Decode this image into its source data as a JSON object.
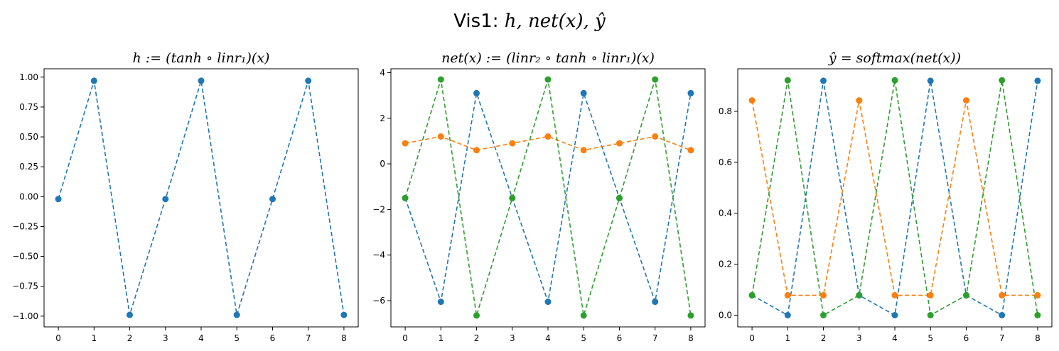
{
  "figure": {
    "suptitle_prefix": "Vis1: ",
    "suptitle_math": "h, net(x), ŷ"
  },
  "chart_data": [
    {
      "type": "line",
      "title_math": "h := (tanh ∘ linr₁)(x)",
      "x": [
        0,
        1,
        2,
        3,
        4,
        5,
        6,
        7,
        8
      ],
      "xticks": [
        0,
        1,
        2,
        3,
        4,
        5,
        6,
        7,
        8
      ],
      "xlim": [
        -0.4,
        8.4
      ],
      "yticks": [
        -1.0,
        -0.75,
        -0.5,
        -0.25,
        0.0,
        0.25,
        0.5,
        0.75,
        1.0
      ],
      "ytick_labels": [
        "−1.00",
        "−0.75",
        "−0.50",
        "−0.25",
        "0.00",
        "0.25",
        "0.50",
        "0.75",
        "1.00"
      ],
      "ylim": [
        -1.09,
        1.07
      ],
      "line_style": "dashed",
      "marker": "o",
      "series": [
        {
          "color": "#1f77b4",
          "values": [
            -0.02,
            0.97,
            -0.99,
            -0.02,
            0.97,
            -0.99,
            -0.02,
            0.97,
            -0.99
          ]
        }
      ]
    },
    {
      "type": "line",
      "title_math": "net(x) := (linr₂ ∘ tanh ∘ linr₁)(x)",
      "x": [
        0,
        1,
        2,
        3,
        4,
        5,
        6,
        7,
        8
      ],
      "xticks": [
        0,
        1,
        2,
        3,
        4,
        5,
        6,
        7,
        8
      ],
      "xlim": [
        -0.4,
        8.4
      ],
      "yticks": [
        -6,
        -4,
        -2,
        0,
        2,
        4
      ],
      "ytick_labels": [
        "−6",
        "−4",
        "−2",
        "0",
        "2",
        "4"
      ],
      "ylim": [
        -7.15,
        4.17
      ],
      "line_style": "dashed",
      "marker": "o",
      "series": [
        {
          "color": "#1f77b4",
          "values": [
            -1.5,
            -6.05,
            3.1,
            -1.5,
            -6.05,
            3.1,
            -1.5,
            -6.05,
            3.1
          ]
        },
        {
          "color": "#ff7f0e",
          "values": [
            0.9,
            1.2,
            0.6,
            0.9,
            1.2,
            0.6,
            0.9,
            1.2,
            0.6
          ]
        },
        {
          "color": "#2ca02c",
          "values": [
            -1.5,
            3.7,
            -6.65,
            -1.5,
            3.7,
            -6.65,
            -1.5,
            3.7,
            -6.65
          ]
        }
      ]
    },
    {
      "type": "line",
      "title_math": "ŷ = softmax(net(x))",
      "x": [
        0,
        1,
        2,
        3,
        4,
        5,
        6,
        7,
        8
      ],
      "xticks": [
        0,
        1,
        2,
        3,
        4,
        5,
        6,
        7,
        8
      ],
      "xlim": [
        -0.4,
        8.4
      ],
      "yticks": [
        0.0,
        0.2,
        0.4,
        0.6,
        0.8
      ],
      "ytick_labels": [
        "0.0",
        "0.2",
        "0.4",
        "0.6",
        "0.8"
      ],
      "ylim": [
        -0.046,
        0.967
      ],
      "line_style": "dashed",
      "marker": "o",
      "series": [
        {
          "color": "#1f77b4",
          "values": [
            0.078,
            0.0,
            0.92,
            0.078,
            0.0,
            0.92,
            0.078,
            0.0,
            0.92
          ]
        },
        {
          "color": "#ff7f0e",
          "values": [
            0.843,
            0.078,
            0.078,
            0.843,
            0.078,
            0.078,
            0.843,
            0.078,
            0.078
          ]
        },
        {
          "color": "#2ca02c",
          "values": [
            0.078,
            0.922,
            0.0,
            0.078,
            0.922,
            0.0,
            0.078,
            0.922,
            0.0
          ]
        }
      ]
    }
  ]
}
